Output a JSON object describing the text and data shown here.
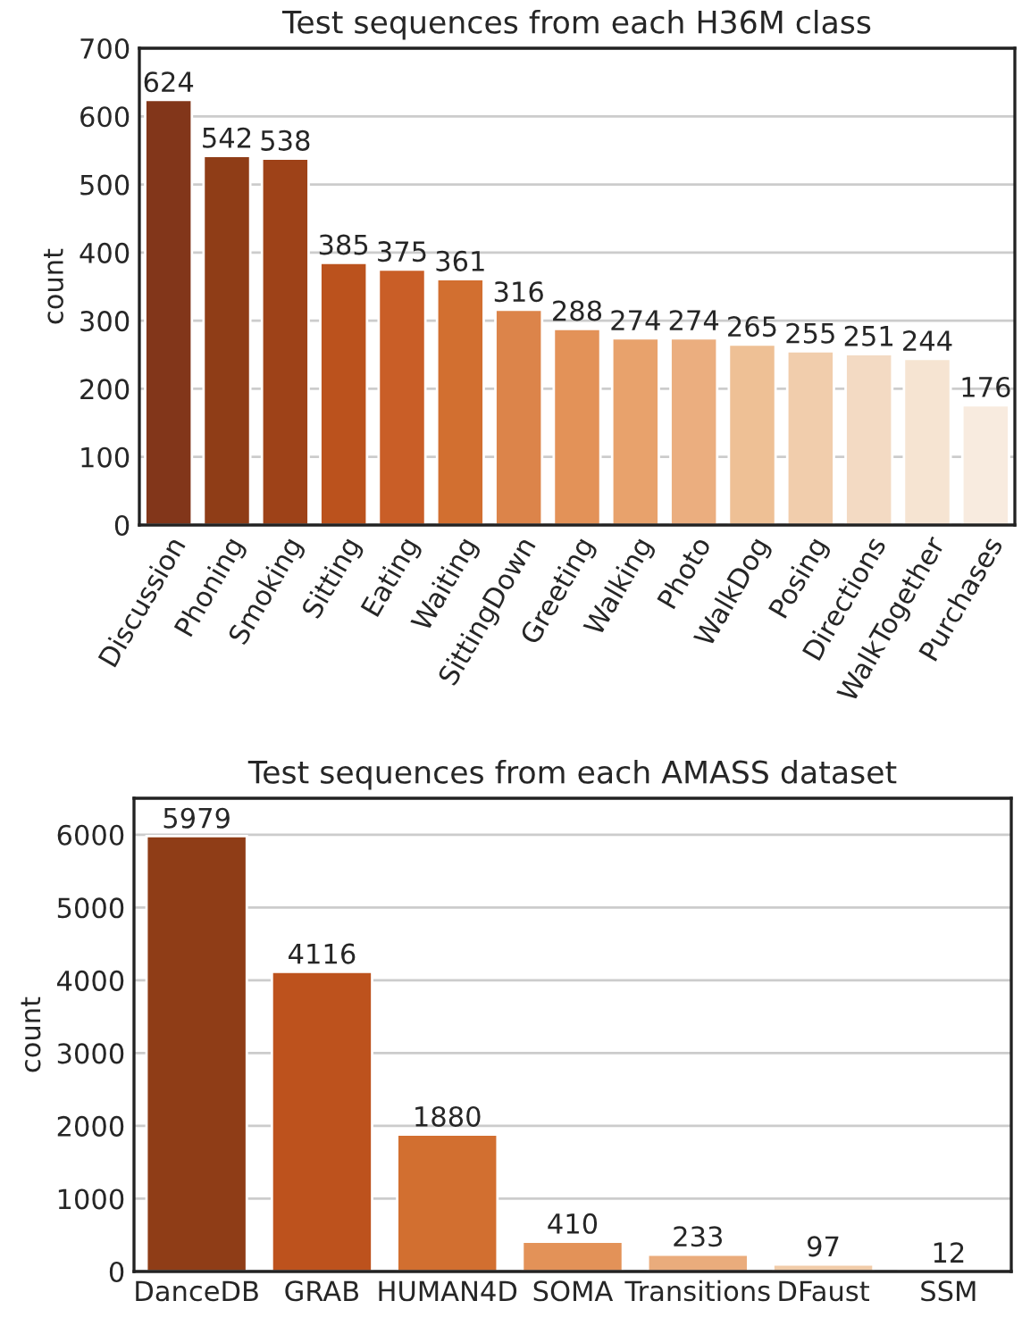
{
  "chart_data": [
    {
      "type": "bar",
      "title": "Test sequences from each H36M class",
      "ylabel": "count",
      "categories": [
        "Discussion",
        "Phoning",
        "Smoking",
        "Sitting",
        "Eating",
        "Waiting",
        "SittingDown",
        "Greeting",
        "Walking",
        "Photo",
        "WalkDog",
        "Posing",
        "Directions",
        "WalkTogether",
        "Purchases"
      ],
      "values": [
        624,
        542,
        538,
        385,
        375,
        361,
        316,
        288,
        274,
        274,
        265,
        255,
        251,
        244,
        176
      ],
      "colors": [
        "#82361a",
        "#8f3d17",
        "#9e4218",
        "#bb521d",
        "#c95e27",
        "#d26f30",
        "#dc844a",
        "#e39258",
        "#e8a26c",
        "#ebae7f",
        "#eec095",
        "#f1cdac",
        "#f3dac3",
        "#f6e4d2",
        "#f8ebdf"
      ],
      "ylim": [
        0,
        700
      ],
      "yticks": [
        0,
        100,
        200,
        300,
        400,
        500,
        600,
        700
      ],
      "grid": "y",
      "data_labels": true,
      "legend": false
    },
    {
      "type": "bar",
      "title": "Test sequences from each AMASS dataset",
      "ylabel": "count",
      "categories": [
        "DanceDB",
        "GRAB",
        "HUMAN4D",
        "SOMA",
        "Transitions",
        "DFaust",
        "SSM"
      ],
      "values": [
        5979,
        4116,
        1880,
        410,
        233,
        97,
        12
      ],
      "colors": [
        "#8f3d17",
        "#bd521d",
        "#d26f30",
        "#e39258",
        "#eaac7c",
        "#f1cca9",
        "#f6e2cf"
      ],
      "ylim": [
        0,
        6500
      ],
      "yticks": [
        0,
        1000,
        2000,
        3000,
        4000,
        5000,
        6000
      ],
      "grid": "y",
      "data_labels": true,
      "legend": false
    }
  ]
}
